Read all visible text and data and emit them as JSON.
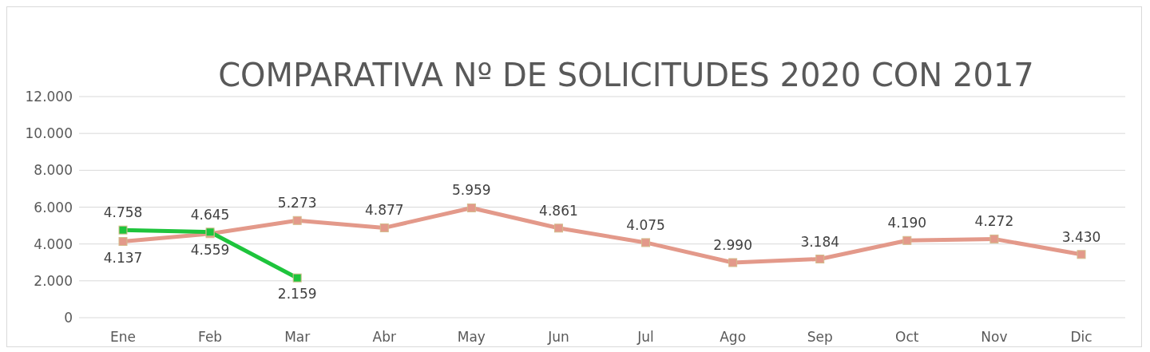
{
  "chart_data": {
    "type": "line",
    "title": "COMPARATIVA Nº DE SOLICITUDES 2020 CON 2017",
    "categories": [
      "Ene",
      "Feb",
      "Mar",
      "Abr",
      "May",
      "Jun",
      "Jul",
      "Ago",
      "Sep",
      "Oct",
      "Nov",
      "Dic"
    ],
    "series": [
      {
        "color": "#e3998a",
        "values": [
          4137,
          4559,
          5273,
          4877,
          5959,
          4861,
          4075,
          2990,
          3184,
          4190,
          4272,
          3430
        ],
        "value_labels": [
          "4.137",
          "4.559",
          "5.273",
          "4.877",
          "5.959",
          "4.861",
          "4.075",
          "2.990",
          "3.184",
          "4.190",
          "4.272",
          "3.430"
        ]
      },
      {
        "color": "#1ec43c",
        "values": [
          4758,
          4645,
          2159,
          null,
          null,
          null,
          null,
          null,
          null,
          null,
          null,
          null
        ],
        "value_labels": [
          "4.758",
          "4.645",
          "2.159",
          null,
          null,
          null,
          null,
          null,
          null,
          null,
          null,
          null
        ]
      }
    ],
    "ylim": [
      0,
      12000
    ],
    "yticks": [
      {
        "value": 0,
        "label": "0"
      },
      {
        "value": 2000,
        "label": "2.000"
      },
      {
        "value": 4000,
        "label": "4.000"
      },
      {
        "value": 6000,
        "label": "6.000"
      },
      {
        "value": 8000,
        "label": "8.000"
      },
      {
        "value": 10000,
        "label": "10.000"
      },
      {
        "value": 12000,
        "label": "12.000"
      }
    ],
    "grid": "y",
    "marker": "square",
    "line_style": "solid",
    "legend": false
  }
}
